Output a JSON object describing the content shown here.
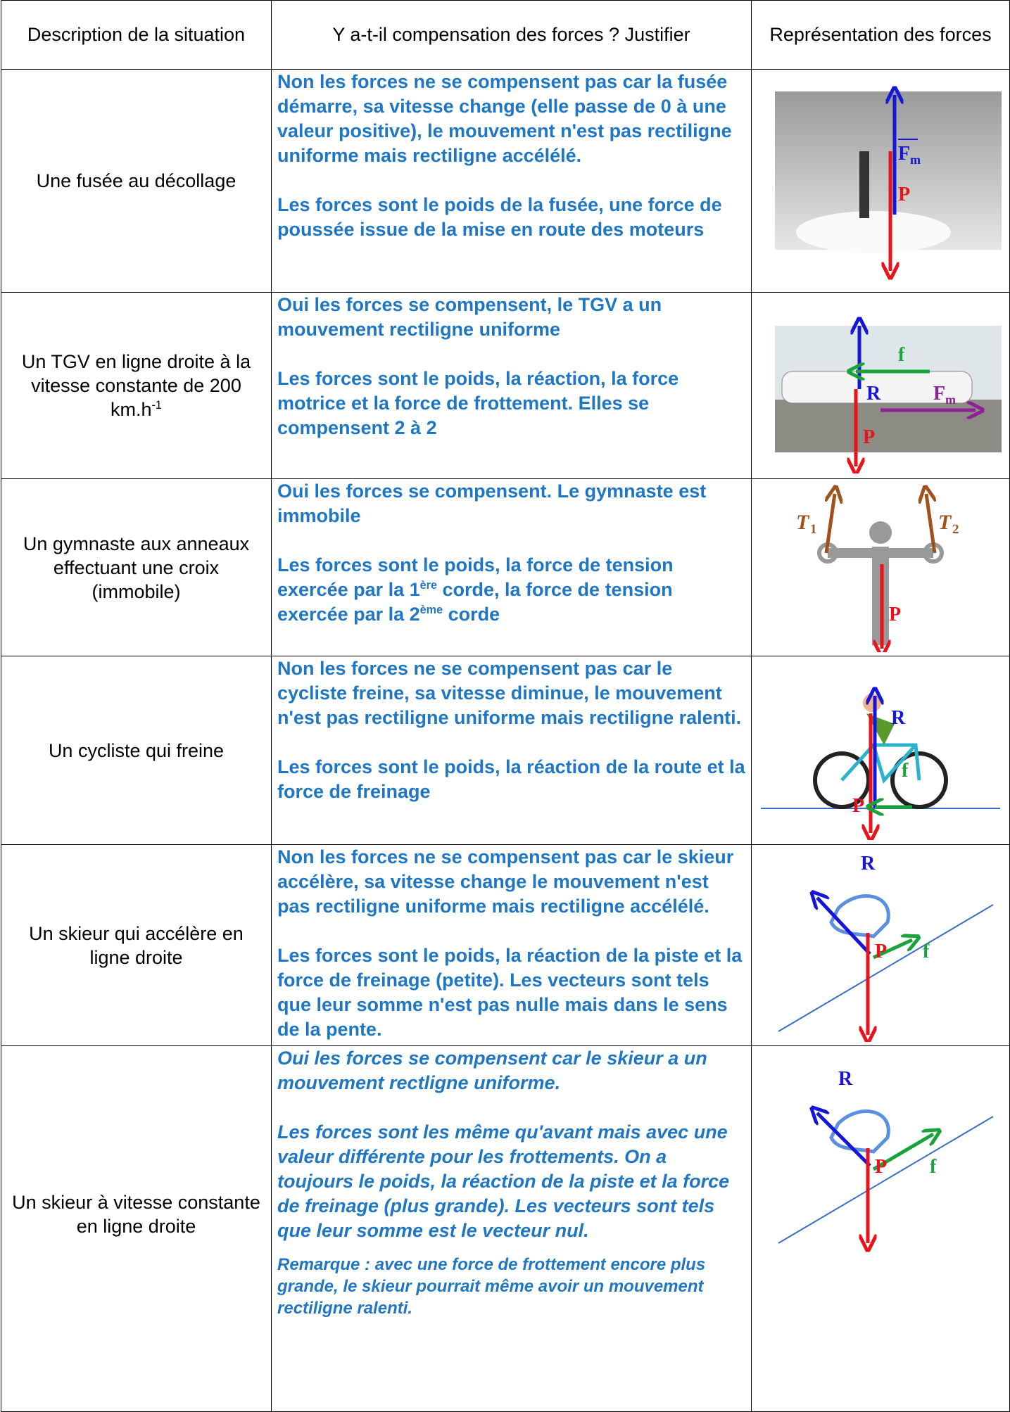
{
  "table": {
    "headers": [
      "Description de la situation",
      "Y a-t-il compensation des forces ? Justifier",
      "Représentation des forces"
    ],
    "rows": [
      {
        "description": [
          "Une fusée au décollage"
        ],
        "justification": [
          [
            "Non les forces ne se compensent pas car la fusée démarre, sa vitesse change (elle passe de 0 à une valeur positive), le mouvement n'est pas rectiligne uniforme mais rectiligne accélélé."
          ],
          [
            "Les forces sont le poids de la fusée, une force de poussée issue de la mise en route des moteurs"
          ]
        ],
        "figure_labels": [
          "F",
          "m",
          "P"
        ]
      },
      {
        "description": [
          "Un TGV en ligne droite à la vitesse constante de 200 km.h",
          "-1"
        ],
        "justification": [
          [
            "Oui les forces se compensent, le TGV a un mouvement rectiligne uniforme"
          ],
          [
            "Les forces sont le poids, la réaction, la force motrice et la force de frottement. Elles se compensent 2 à 2"
          ]
        ],
        "figure_labels": [
          "f",
          "R",
          "F",
          "m",
          "P"
        ]
      },
      {
        "description": [
          "Un gymnaste aux anneaux effectuant une croix (immobile)"
        ],
        "justification": [
          [
            "Oui les forces se compensent. Le gymnaste est immobile"
          ],
          [
            "Les forces sont le poids, la force de tension exercée par la 1",
            "ère",
            " corde, la force de tension exercée par la 2",
            "ème",
            " corde"
          ]
        ],
        "figure_labels": [
          "T",
          "1",
          "T",
          "2",
          "P"
        ]
      },
      {
        "description": [
          "Un cycliste qui freine"
        ],
        "justification": [
          [
            "Non les forces ne se compensent pas car le cycliste freine, sa vitesse diminue, le mouvement n'est pas rectiligne uniforme mais rectiligne ralenti."
          ],
          [
            "Les forces sont le poids, la réaction de la route et la force de freinage"
          ]
        ],
        "figure_labels": [
          "R",
          "f",
          "P"
        ]
      },
      {
        "description": [
          "Un skieur qui accélère en ligne droite"
        ],
        "justification": [
          [
            "Non les forces ne se compensent pas car le skieur accélère, sa vitesse change le mouvement n'est pas rectiligne uniforme mais rectiligne accélélé."
          ],
          [
            "Les forces sont le poids, la réaction de la piste et la force de freinage (petite). Les vecteurs sont tels que leur somme n'est pas nulle mais dans le sens de la pente."
          ]
        ],
        "figure_labels": [
          "R",
          "P",
          "f"
        ]
      },
      {
        "description": [
          "Un skieur à vitesse constante en ligne droite"
        ],
        "justification": [
          [
            "Oui les forces se compensent car le skieur a un mouvement rectligne uniforme."
          ],
          [
            "Les forces sont les même qu'avant mais avec une valeur différente pour les frottements. On a toujours le poids, la réaction de la piste et la force de freinage (plus grande). Les vecteurs sont tels que leur somme est le vecteur nul."
          ],
          [
            "Remarque : avec une force de frottement encore plus grande, le skieur pourrait même avoir un mouvement rectiligne ralenti."
          ]
        ],
        "figure_labels": [
          "R",
          "P",
          "f"
        ]
      }
    ]
  }
}
